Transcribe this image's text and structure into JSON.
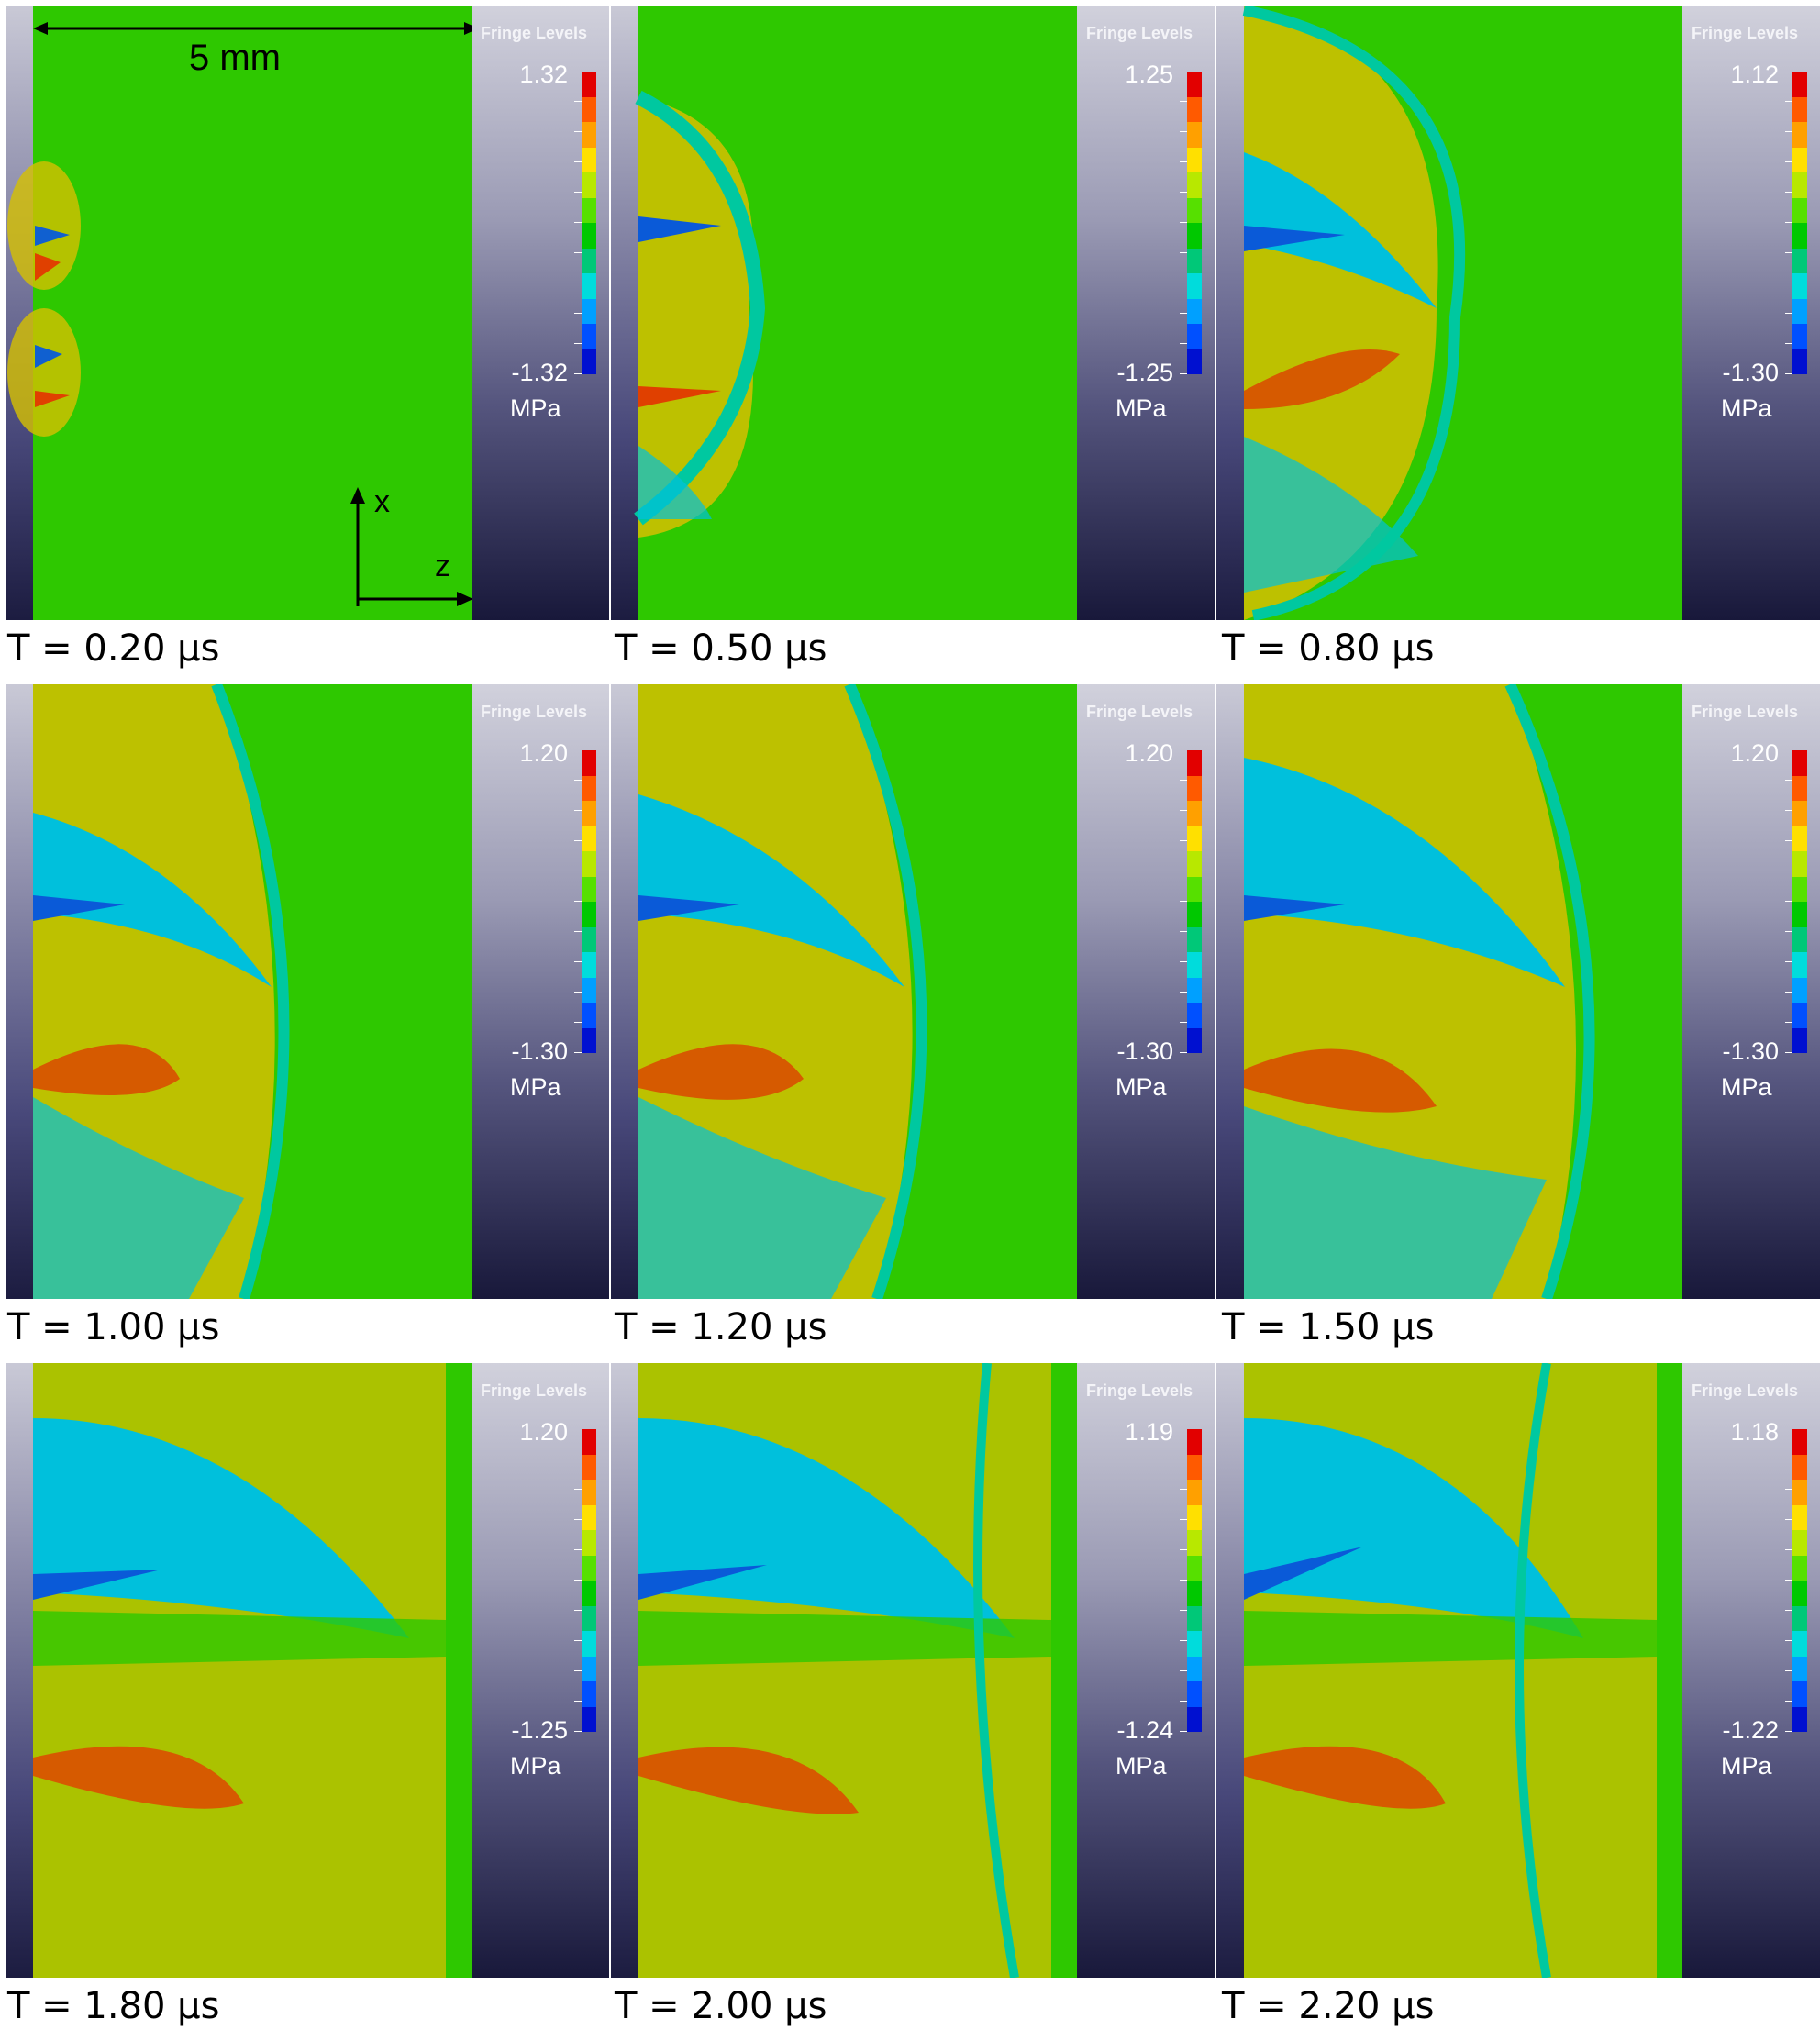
{
  "legend_title": "Fringe Levels",
  "unit": "MPa",
  "scale_bar": "5 mm",
  "axis_x": "x",
  "axis_z": "z",
  "colormap": [
    "#e20000",
    "#ff5a00",
    "#ffa000",
    "#ffe000",
    "#b8e800",
    "#56e000",
    "#00c800",
    "#00c878",
    "#00dcdc",
    "#00a0ff",
    "#0050ff",
    "#0010d0"
  ],
  "panels": [
    {
      "caption": "T = 0.20 µs",
      "max": "1.32",
      "min": "-1.32"
    },
    {
      "caption": "T = 0.50 µs",
      "max": "1.25",
      "min": "-1.25"
    },
    {
      "caption": "T = 0.80 µs",
      "max": "1.12",
      "min": "-1.30"
    },
    {
      "caption": "T = 1.00 µs",
      "max": "1.20",
      "min": "-1.30"
    },
    {
      "caption": "T = 1.20 µs",
      "max": "1.20",
      "min": "-1.30"
    },
    {
      "caption": "T = 1.50 µs",
      "max": "1.20",
      "min": "-1.30"
    },
    {
      "caption": "T = 1.80 µs",
      "max": "1.20",
      "min": "-1.25"
    },
    {
      "caption": "T = 2.00 µs",
      "max": "1.19",
      "min": "-1.24"
    },
    {
      "caption": "T = 2.20 µs",
      "max": "1.18",
      "min": "-1.22"
    }
  ]
}
